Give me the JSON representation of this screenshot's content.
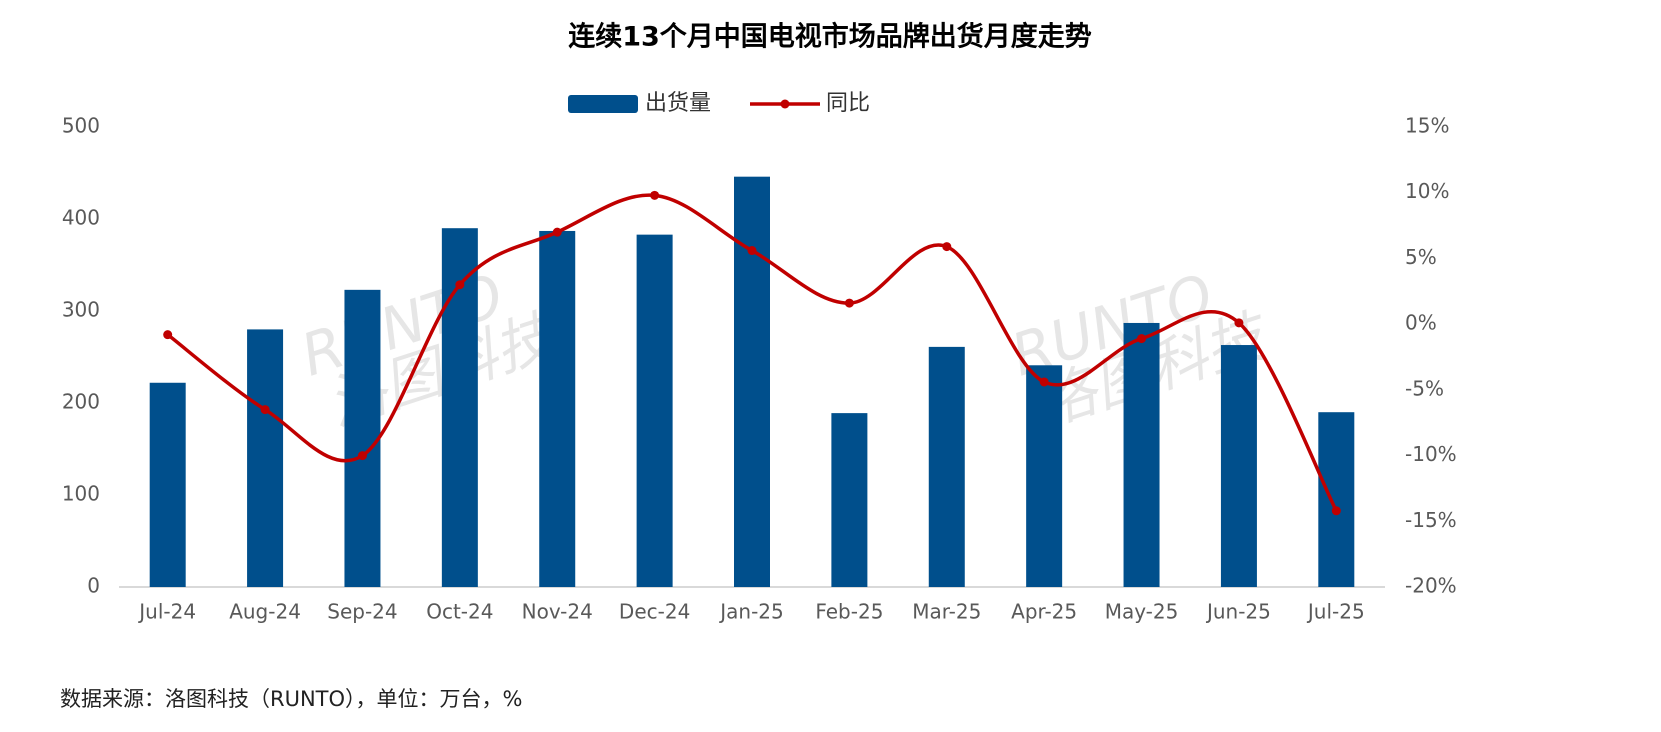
{
  "chart_data": {
    "type": "bar-line",
    "title": "连续13个月中国电视市场品牌出货月度走势",
    "categories": [
      "Jul-24",
      "Aug-24",
      "Sep-24",
      "Oct-24",
      "Nov-24",
      "Dec-24",
      "Jan-25",
      "Feb-25",
      "Mar-25",
      "Apr-25",
      "May-25",
      "Jun-25",
      "Jul-25"
    ],
    "series": [
      {
        "name": "出货量",
        "color": "#004f8c",
        "type": "bar",
        "values": [
          222,
          280,
          323,
          390,
          387,
          383,
          446,
          189,
          261,
          241,
          287,
          263,
          190
        ]
      },
      {
        "name": "同比",
        "color": "#c00000",
        "type": "line",
        "axis": "y2",
        "values": [
          -0.8,
          -6.5,
          -10.0,
          3.0,
          7.0,
          9.8,
          5.6,
          1.6,
          5.9,
          -4.4,
          -1.1,
          0.1,
          -14.2
        ]
      }
    ],
    "ylim": [
      0,
      500
    ],
    "yticks": [
      0,
      100,
      200,
      300,
      400,
      500
    ],
    "y2lim": [
      -20,
      15
    ],
    "y2ticks": [
      {
        "value": -20,
        "label": "-20%"
      },
      {
        "value": -15,
        "label": "-15%"
      },
      {
        "value": -10,
        "label": "-10%"
      },
      {
        "value": -5,
        "label": "-5%"
      },
      {
        "value": 0,
        "label": "0%"
      },
      {
        "value": 5,
        "label": "5%"
      },
      {
        "value": 10,
        "label": "10%"
      },
      {
        "value": 15,
        "label": "15%"
      }
    ],
    "legend": "top",
    "watermark": [
      "RUNTO",
      "洛图科技"
    ],
    "source": "数据来源：洛图科技（RUNTO），单位：万台，%"
  }
}
